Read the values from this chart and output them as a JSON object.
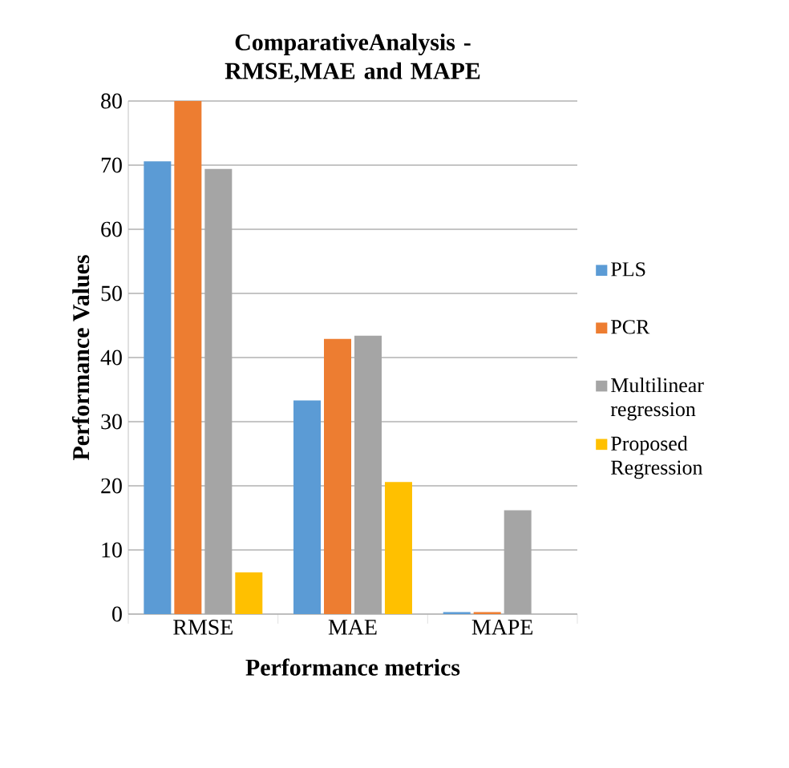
{
  "chart_data": {
    "type": "bar",
    "title": "ComparativeAnalysis - RMSE,MAE and MAPE",
    "xlabel": "Performance metrics",
    "ylabel": "Performance Values",
    "categories": [
      "RMSE",
      "MAE",
      "MAPE"
    ],
    "series": [
      {
        "name": "PLS",
        "color": "#5b9bd5",
        "values": [
          70.6,
          33.3,
          0.3
        ]
      },
      {
        "name": "PCR",
        "color": "#ed7d31",
        "values": [
          80,
          42.9,
          0.3
        ]
      },
      {
        "name": "Multilinear regression",
        "color": "#a5a5a5",
        "values": [
          69.4,
          43.4,
          16.2
        ]
      },
      {
        "name": "Proposed Regression",
        "color": "#ffc000",
        "values": [
          6.5,
          20.6,
          0
        ]
      }
    ],
    "ylim": [
      0,
      80
    ],
    "yticks": [
      0,
      10,
      20,
      30,
      40,
      50,
      60,
      70,
      80
    ],
    "grid": "y",
    "legend": "right"
  }
}
